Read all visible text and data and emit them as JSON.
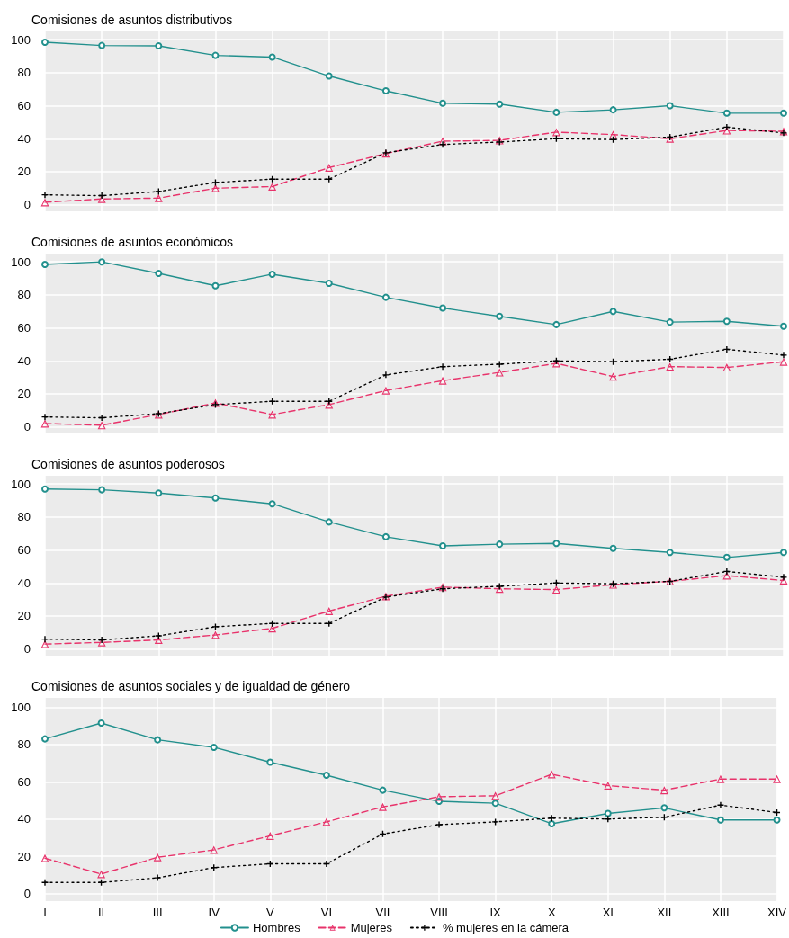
{
  "chart_data": [
    {
      "type": "line",
      "title": "Comisiones de asuntos distributivos",
      "categories": [
        null,
        null,
        null,
        null,
        null,
        null,
        null,
        null,
        null,
        null,
        null,
        null,
        null,
        null
      ],
      "ylim": [
        -4,
        105
      ],
      "yticks": [
        0,
        20,
        40,
        60,
        80,
        100
      ],
      "grid": true,
      "legend": false,
      "tick_labels": "y",
      "series": [
        {
          "color": "#22908d",
          "marker": "circle",
          "line_style": "solid",
          "values": [
            98.5,
            96.5,
            96.3,
            90.5,
            89.5,
            78,
            69,
            61.5,
            61,
            56,
            57.5,
            60,
            55.5,
            55.5
          ]
        },
        {
          "color": "#e8336b",
          "marker": "triangle",
          "line_style": "dashed",
          "values": [
            1.5,
            3.5,
            4,
            10,
            11,
            22.5,
            31,
            38.5,
            39,
            44,
            42.5,
            40,
            45,
            44.5
          ]
        },
        {
          "color": "#000000",
          "marker": "cross",
          "line_style": "dotted",
          "values": [
            6,
            5.5,
            8,
            13.5,
            15.5,
            15.5,
            31.5,
            36.5,
            38,
            40,
            39.5,
            41,
            47,
            43.5
          ]
        }
      ]
    },
    {
      "type": "line",
      "title": "Comisiones de asuntos económicos",
      "categories": [
        null,
        null,
        null,
        null,
        null,
        null,
        null,
        null,
        null,
        null,
        null,
        null,
        null,
        null
      ],
      "ylim": [
        -4,
        105
      ],
      "yticks": [
        0,
        20,
        40,
        60,
        80,
        100
      ],
      "grid": true,
      "legend": false,
      "tick_labels": "y",
      "series": [
        {
          "color": "#22908d",
          "marker": "circle",
          "line_style": "solid",
          "values": [
            98.5,
            100,
            93,
            85.5,
            92.5,
            87,
            78.5,
            72,
            67,
            62,
            70,
            63.5,
            64,
            61
          ]
        },
        {
          "color": "#e8336b",
          "marker": "triangle",
          "line_style": "dashed",
          "values": [
            2,
            1,
            7.5,
            14.5,
            7.5,
            13.5,
            22,
            28,
            33,
            38.5,
            30.5,
            36.5,
            36,
            39.5
          ]
        },
        {
          "color": "#000000",
          "marker": "cross",
          "line_style": "dotted",
          "values": [
            6,
            5.5,
            8,
            13.5,
            15.5,
            15.5,
            31.5,
            36.5,
            38,
            40,
            39.5,
            41,
            47,
            43.5
          ]
        }
      ]
    },
    {
      "type": "line",
      "title": "Comisiones de asuntos poderosos",
      "categories": [
        null,
        null,
        null,
        null,
        null,
        null,
        null,
        null,
        null,
        null,
        null,
        null,
        null,
        null
      ],
      "ylim": [
        -4,
        105
      ],
      "yticks": [
        0,
        20,
        40,
        60,
        80,
        100
      ],
      "grid": true,
      "legend": false,
      "tick_labels": "y",
      "series": [
        {
          "color": "#22908d",
          "marker": "circle",
          "line_style": "solid",
          "values": [
            97,
            96.5,
            94.5,
            91.5,
            88,
            77,
            68,
            62.5,
            63.5,
            64,
            61,
            58.5,
            55.5,
            58.5
          ]
        },
        {
          "color": "#e8336b",
          "marker": "triangle",
          "line_style": "dashed",
          "values": [
            3,
            4,
            5.5,
            8.5,
            12.5,
            23,
            32,
            37.5,
            36.5,
            36,
            39,
            41,
            44.5,
            41.5
          ]
        },
        {
          "color": "#000000",
          "marker": "cross",
          "line_style": "dotted",
          "values": [
            6,
            5.5,
            8,
            13.5,
            15.5,
            15.5,
            31.5,
            36.5,
            38,
            40,
            39.5,
            41,
            47,
            43.5
          ]
        }
      ]
    },
    {
      "type": "line",
      "title": "Comisiones de asuntos sociales y de igualdad de género",
      "categories": [
        "I",
        "II",
        "III",
        "IV",
        "V",
        "VI",
        "VII",
        "VIII",
        "IX",
        "X",
        "XI",
        "XII",
        "XIII",
        "XIV"
      ],
      "ylim": [
        -4,
        105
      ],
      "yticks": [
        0,
        20,
        40,
        60,
        80,
        100
      ],
      "grid": true,
      "legend": "bottom",
      "series": [
        {
          "name": "Hombres",
          "color": "#22908d",
          "marker": "circle",
          "line_style": "solid",
          "values": [
            83,
            91.5,
            82.5,
            78.5,
            70.5,
            63.5,
            55.5,
            49.5,
            48.5,
            37.5,
            43,
            46,
            39.5,
            39.5
          ]
        },
        {
          "name": "Mujeres",
          "color": "#e8336b",
          "marker": "triangle",
          "line_style": "dashed",
          "values": [
            19,
            10.5,
            19.5,
            23.5,
            31,
            38.5,
            46.5,
            52,
            52.5,
            64,
            58,
            55.5,
            61.5,
            61.5
          ]
        },
        {
          "name": "% mujeres en la cámera",
          "color": "#000000",
          "marker": "cross",
          "line_style": "dotted",
          "values": [
            6,
            6,
            8.5,
            14,
            16,
            16,
            32,
            37,
            38.5,
            40.5,
            40,
            41,
            47.5,
            43.5
          ]
        }
      ]
    }
  ]
}
